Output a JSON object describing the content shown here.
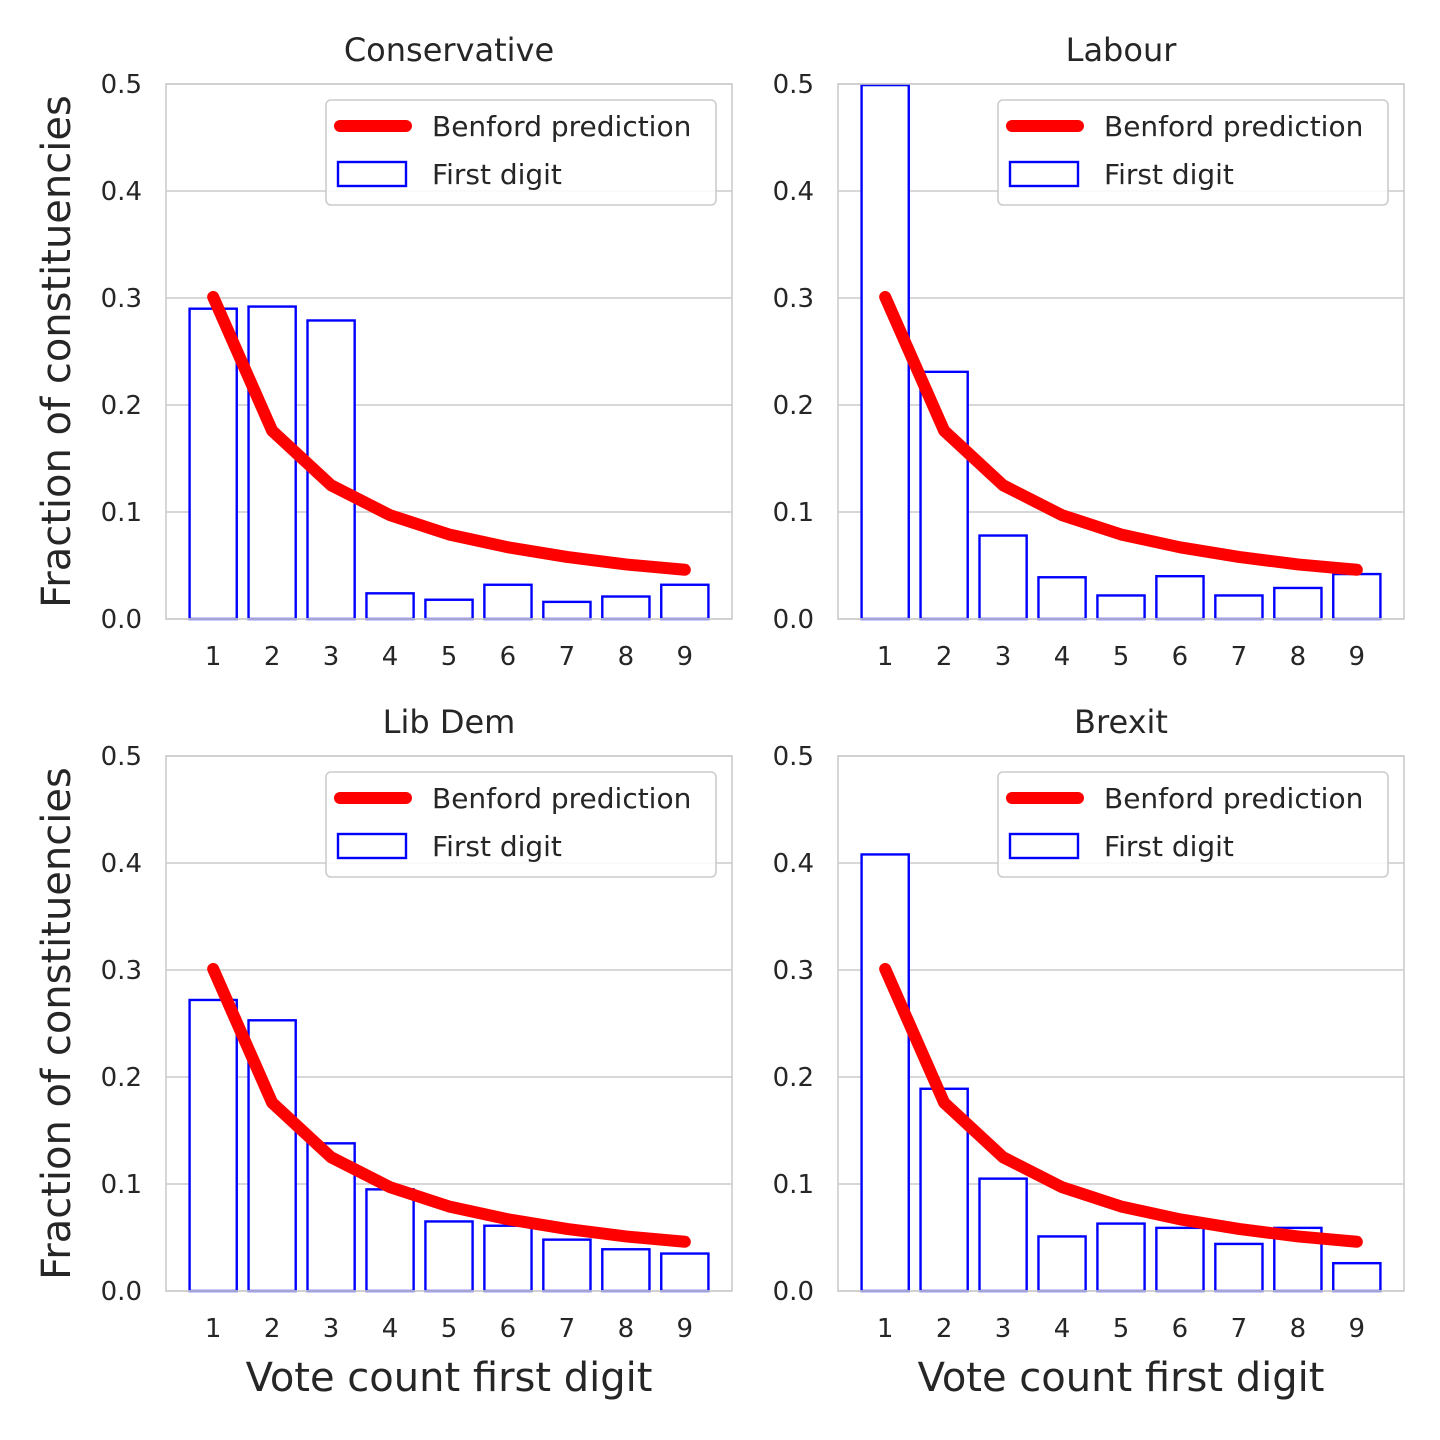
{
  "chart_data": [
    {
      "type": "bar",
      "title": "Conservative",
      "xlabel": "",
      "ylabel": "Fraction of constituencies",
      "categories": [
        "1",
        "2",
        "3",
        "4",
        "5",
        "6",
        "7",
        "8",
        "9"
      ],
      "yticks": [
        "0.0",
        "0.1",
        "0.2",
        "0.3",
        "0.4",
        "0.5"
      ],
      "ylim": [
        0,
        0.5
      ],
      "grid": "horizontal",
      "legend_position": "top-right",
      "series": [
        {
          "name": "First digit",
          "kind": "bar",
          "values": [
            0.29,
            0.292,
            0.279,
            0.024,
            0.018,
            0.032,
            0.016,
            0.021,
            0.032
          ]
        },
        {
          "name": "Benford prediction",
          "kind": "line",
          "values": [
            0.301,
            0.176,
            0.125,
            0.097,
            0.079,
            0.067,
            0.058,
            0.051,
            0.046
          ]
        }
      ]
    },
    {
      "type": "bar",
      "title": "Labour",
      "xlabel": "",
      "ylabel": "",
      "categories": [
        "1",
        "2",
        "3",
        "4",
        "5",
        "6",
        "7",
        "8",
        "9"
      ],
      "yticks": [
        "0.0",
        "0.1",
        "0.2",
        "0.3",
        "0.4",
        "0.5"
      ],
      "ylim": [
        0,
        0.5
      ],
      "grid": "horizontal",
      "legend_position": "top-right",
      "series": [
        {
          "name": "First digit",
          "kind": "bar",
          "values": [
            0.499,
            0.231,
            0.078,
            0.039,
            0.022,
            0.04,
            0.022,
            0.029,
            0.042
          ]
        },
        {
          "name": "Benford prediction",
          "kind": "line",
          "values": [
            0.301,
            0.176,
            0.125,
            0.097,
            0.079,
            0.067,
            0.058,
            0.051,
            0.046
          ]
        }
      ]
    },
    {
      "type": "bar",
      "title": "Lib Dem",
      "xlabel": "Vote count first digit",
      "ylabel": "Fraction of constituencies",
      "categories": [
        "1",
        "2",
        "3",
        "4",
        "5",
        "6",
        "7",
        "8",
        "9"
      ],
      "yticks": [
        "0.0",
        "0.1",
        "0.2",
        "0.3",
        "0.4",
        "0.5"
      ],
      "ylim": [
        0,
        0.5
      ],
      "grid": "horizontal",
      "legend_position": "top-right",
      "series": [
        {
          "name": "First digit",
          "kind": "bar",
          "values": [
            0.272,
            0.253,
            0.138,
            0.095,
            0.065,
            0.061,
            0.048,
            0.039,
            0.035
          ]
        },
        {
          "name": "Benford prediction",
          "kind": "line",
          "values": [
            0.301,
            0.176,
            0.125,
            0.097,
            0.079,
            0.067,
            0.058,
            0.051,
            0.046
          ]
        }
      ]
    },
    {
      "type": "bar",
      "title": "Brexit",
      "xlabel": "Vote count first digit",
      "ylabel": "",
      "categories": [
        "1",
        "2",
        "3",
        "4",
        "5",
        "6",
        "7",
        "8",
        "9"
      ],
      "yticks": [
        "0.0",
        "0.1",
        "0.2",
        "0.3",
        "0.4",
        "0.5"
      ],
      "ylim": [
        0,
        0.5
      ],
      "grid": "horizontal",
      "legend_position": "top-right",
      "series": [
        {
          "name": "First digit",
          "kind": "bar",
          "values": [
            0.408,
            0.189,
            0.105,
            0.051,
            0.063,
            0.059,
            0.044,
            0.059,
            0.026
          ]
        },
        {
          "name": "Benford prediction",
          "kind": "line",
          "values": [
            0.301,
            0.176,
            0.125,
            0.097,
            0.079,
            0.067,
            0.058,
            0.051,
            0.046
          ]
        }
      ]
    }
  ],
  "colors": {
    "bar_edge": "#0000ff",
    "benford_line": "#ff0000",
    "grid": "#cccccc",
    "text": "#262626"
  }
}
